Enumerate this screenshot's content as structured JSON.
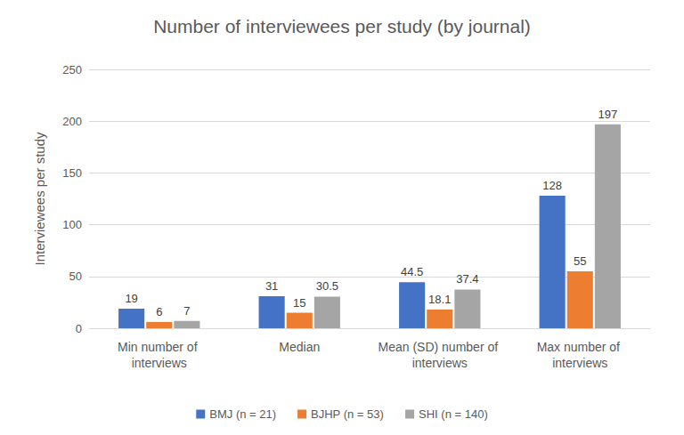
{
  "chart_data": {
    "type": "bar",
    "title": "Number of interviewees per study (by journal)",
    "y_label": "Interviewees per study",
    "categories": [
      "Min number of interviews",
      "Median",
      "Mean (SD) number of interviews",
      "Max number of interviews"
    ],
    "series": [
      {
        "name": "BMJ (n = 21)",
        "color": "#4472c4",
        "values": [
          19,
          31,
          44.5,
          128
        ]
      },
      {
        "name": "BJHP (n = 53)",
        "color": "#ed7d31",
        "values": [
          6,
          15,
          18.1,
          55
        ]
      },
      {
        "name": "SHI (n = 140)",
        "color": "#a5a5a5",
        "values": [
          7,
          30.5,
          37.4,
          197
        ]
      }
    ],
    "ylim": [
      0,
      250
    ],
    "yticks": [
      0,
      50,
      100,
      150,
      200,
      250
    ],
    "grid": true,
    "legend": "bottom",
    "data_labels": true
  }
}
